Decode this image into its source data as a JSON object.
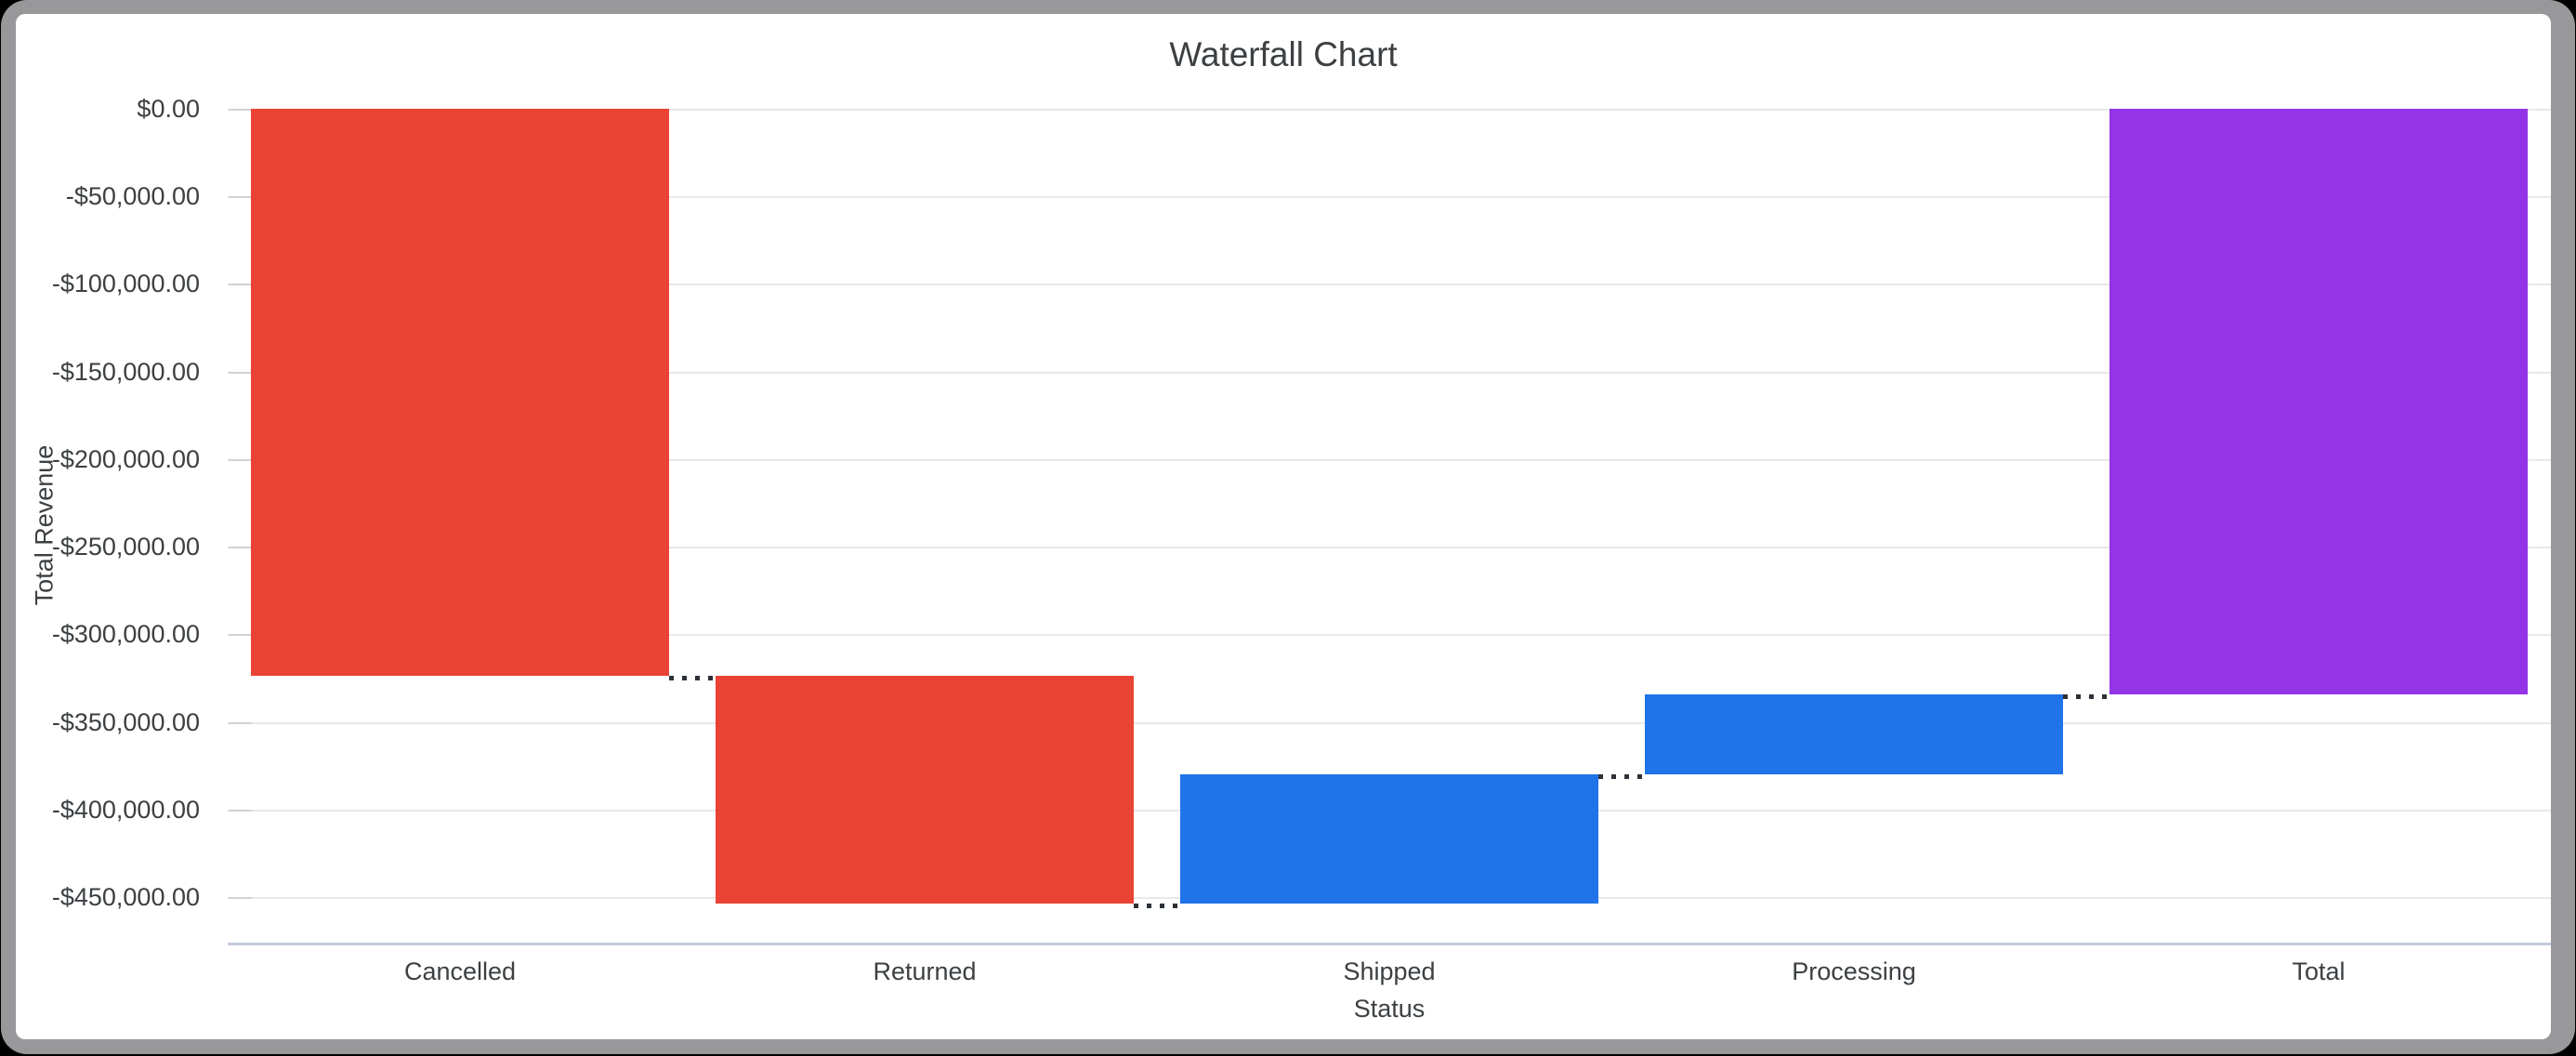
{
  "chart_data": {
    "type": "waterfall",
    "title": "Waterfall Chart",
    "xlabel": "Status",
    "ylabel": "Total Revenue",
    "categories": [
      "Cancelled",
      "Returned",
      "Shipped",
      "Processing",
      "Total"
    ],
    "bars": [
      {
        "label": "Cancelled",
        "start": 0,
        "end": -323700,
        "change": -323700,
        "role": "decrease"
      },
      {
        "label": "Returned",
        "start": -323700,
        "end": -453700,
        "change": -130000,
        "role": "decrease"
      },
      {
        "label": "Shipped",
        "start": -453700,
        "end": -380000,
        "change": 73700,
        "role": "increase"
      },
      {
        "label": "Processing",
        "start": -380000,
        "end": -334300,
        "change": 45700,
        "role": "increase"
      },
      {
        "label": "Total",
        "start": 0,
        "end": -334300,
        "change": -334300,
        "role": "total"
      }
    ],
    "colors": {
      "decrease": "#E94335",
      "increase": "#1E74E8",
      "total": "#9334E6"
    },
    "y_ticks": [
      {
        "value": 0,
        "label": "$0.00"
      },
      {
        "value": -50000,
        "label": "-$50,000.00"
      },
      {
        "value": -100000,
        "label": "-$100,000.00"
      },
      {
        "value": -150000,
        "label": "-$150,000.00"
      },
      {
        "value": -200000,
        "label": "-$200,000.00"
      },
      {
        "value": -250000,
        "label": "-$250,000.00"
      },
      {
        "value": -300000,
        "label": "-$300,000.00"
      },
      {
        "value": -350000,
        "label": "-$350,000.00"
      },
      {
        "value": -400000,
        "label": "-$400,000.00"
      },
      {
        "value": -450000,
        "label": "-$450,000.00"
      }
    ],
    "ylim": [
      -450000,
      0
    ],
    "grid": true,
    "legend": false,
    "connector_style": "dotted"
  }
}
